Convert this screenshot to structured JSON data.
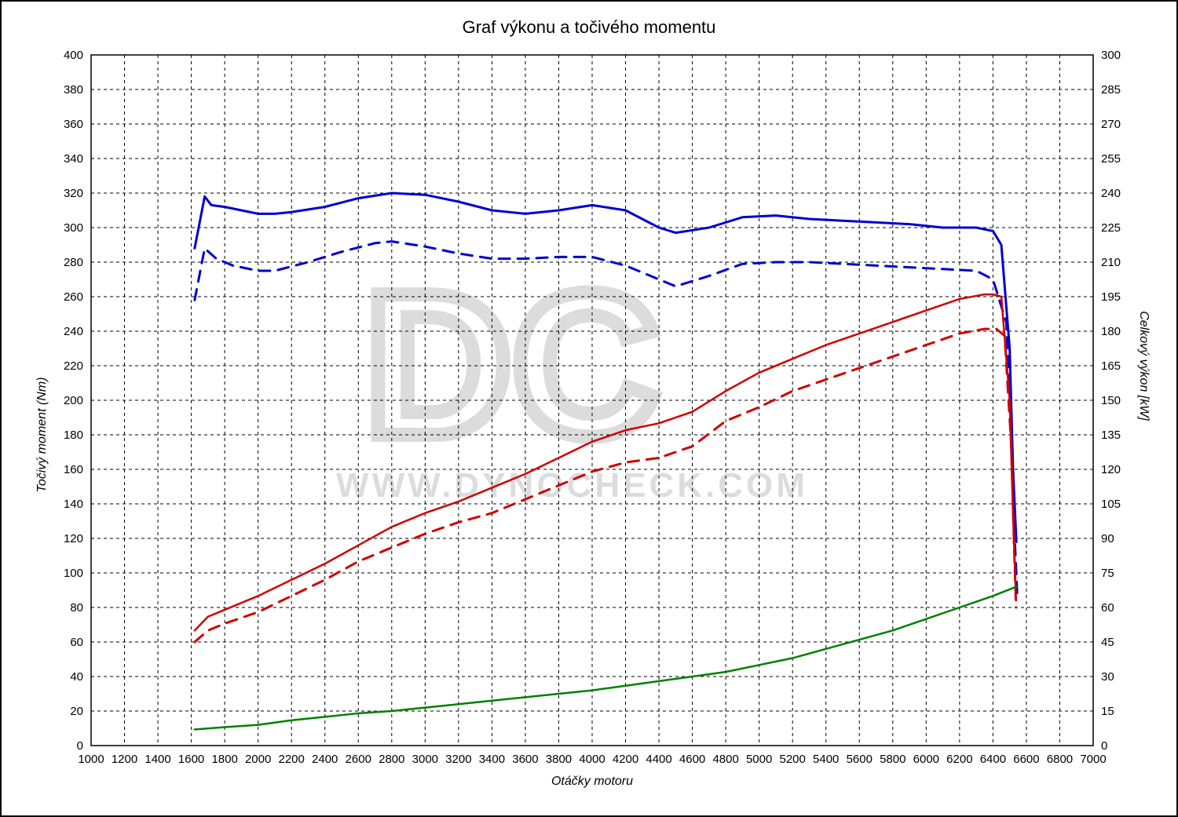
{
  "title": "Graf výkonu a točivého momentu",
  "x_axis": {
    "label": "Otáčky motoru",
    "min": 1000,
    "max": 7000,
    "tick_step": 200,
    "label_fontsize": 16,
    "tick_fontsize": 15
  },
  "y_left": {
    "label": "Točivý moment (Nm)",
    "min": 0,
    "max": 400,
    "tick_step": 20,
    "label_fontsize": 16,
    "tick_fontsize": 15
  },
  "y_right": {
    "label": "Celkový výkon [kW]",
    "min": 0,
    "max": 300,
    "tick_step": 15,
    "label_fontsize": 16,
    "tick_fontsize": 15
  },
  "grid": {
    "color": "#000000",
    "dash": "4,4",
    "width": 1
  },
  "plot_border_color": "#000000",
  "background_color": "#ffffff",
  "watermark": {
    "logo_text": "DC",
    "logo_fontsize": 260,
    "url_text": "WWW.DYNOCHECK.COM",
    "url_fontsize": 44,
    "color": "#dcdcdc"
  },
  "series": {
    "torque_tuned": {
      "axis": "left",
      "color": "#0000d0",
      "width": 3,
      "dash": "none",
      "points": [
        [
          1620,
          288
        ],
        [
          1680,
          318
        ],
        [
          1720,
          313
        ],
        [
          1800,
          312
        ],
        [
          1900,
          310
        ],
        [
          2000,
          308
        ],
        [
          2100,
          308
        ],
        [
          2200,
          309
        ],
        [
          2400,
          312
        ],
        [
          2600,
          317
        ],
        [
          2800,
          320
        ],
        [
          3000,
          319
        ],
        [
          3200,
          315
        ],
        [
          3400,
          310
        ],
        [
          3600,
          308
        ],
        [
          3800,
          310
        ],
        [
          4000,
          313
        ],
        [
          4200,
          310
        ],
        [
          4400,
          300
        ],
        [
          4500,
          297
        ],
        [
          4700,
          300
        ],
        [
          4900,
          306
        ],
        [
          5100,
          307
        ],
        [
          5300,
          305
        ],
        [
          5500,
          304
        ],
        [
          5700,
          303
        ],
        [
          5900,
          302
        ],
        [
          6100,
          300
        ],
        [
          6300,
          300
        ],
        [
          6400,
          298
        ],
        [
          6450,
          290
        ],
        [
          6500,
          230
        ],
        [
          6520,
          160
        ],
        [
          6540,
          118
        ]
      ]
    },
    "torque_stock": {
      "axis": "left",
      "color": "#0000d0",
      "width": 3,
      "dash": "14,10",
      "points": [
        [
          1620,
          258
        ],
        [
          1680,
          288
        ],
        [
          1750,
          282
        ],
        [
          1850,
          278
        ],
        [
          2000,
          275
        ],
        [
          2100,
          275
        ],
        [
          2300,
          280
        ],
        [
          2500,
          286
        ],
        [
          2700,
          291
        ],
        [
          2800,
          292
        ],
        [
          3000,
          289
        ],
        [
          3200,
          285
        ],
        [
          3400,
          282
        ],
        [
          3600,
          282
        ],
        [
          3800,
          283
        ],
        [
          4000,
          283
        ],
        [
          4200,
          278
        ],
        [
          4400,
          270
        ],
        [
          4500,
          266
        ],
        [
          4700,
          272
        ],
        [
          4900,
          279
        ],
        [
          5100,
          280
        ],
        [
          5300,
          280
        ],
        [
          5500,
          279
        ],
        [
          5700,
          278
        ],
        [
          5900,
          277
        ],
        [
          6100,
          276
        ],
        [
          6300,
          275
        ],
        [
          6400,
          270
        ],
        [
          6480,
          245
        ],
        [
          6510,
          180
        ],
        [
          6530,
          120
        ],
        [
          6545,
          88
        ]
      ]
    },
    "power_tuned": {
      "axis": "right",
      "color": "#d00000",
      "width": 2.5,
      "dash": "none",
      "points": [
        [
          1620,
          50
        ],
        [
          1700,
          56
        ],
        [
          1800,
          59
        ],
        [
          2000,
          65
        ],
        [
          2200,
          72
        ],
        [
          2400,
          79
        ],
        [
          2600,
          87
        ],
        [
          2800,
          95
        ],
        [
          3000,
          101
        ],
        [
          3200,
          106
        ],
        [
          3400,
          112
        ],
        [
          3600,
          118
        ],
        [
          3800,
          125
        ],
        [
          4000,
          132
        ],
        [
          4200,
          137
        ],
        [
          4400,
          140
        ],
        [
          4600,
          145
        ],
        [
          4800,
          154
        ],
        [
          5000,
          162
        ],
        [
          5200,
          168
        ],
        [
          5400,
          174
        ],
        [
          5600,
          179
        ],
        [
          5800,
          184
        ],
        [
          6000,
          189
        ],
        [
          6200,
          194
        ],
        [
          6350,
          196
        ],
        [
          6400,
          196
        ],
        [
          6450,
          195
        ],
        [
          6500,
          150
        ],
        [
          6520,
          100
        ],
        [
          6538,
          63
        ]
      ]
    },
    "power_stock": {
      "axis": "right",
      "color": "#d00000",
      "width": 3,
      "dash": "14,10",
      "points": [
        [
          1620,
          45
        ],
        [
          1700,
          50
        ],
        [
          1800,
          53
        ],
        [
          2000,
          58
        ],
        [
          2200,
          65
        ],
        [
          2400,
          72
        ],
        [
          2600,
          80
        ],
        [
          2800,
          86
        ],
        [
          3000,
          92
        ],
        [
          3200,
          97
        ],
        [
          3400,
          101
        ],
        [
          3600,
          107
        ],
        [
          3800,
          113
        ],
        [
          4000,
          119
        ],
        [
          4200,
          123
        ],
        [
          4400,
          125
        ],
        [
          4600,
          130
        ],
        [
          4800,
          141
        ],
        [
          5000,
          147
        ],
        [
          5200,
          154
        ],
        [
          5400,
          159
        ],
        [
          5600,
          164
        ],
        [
          5800,
          169
        ],
        [
          6000,
          174
        ],
        [
          6200,
          179
        ],
        [
          6350,
          181
        ],
        [
          6420,
          181
        ],
        [
          6470,
          178
        ],
        [
          6510,
          130
        ],
        [
          6525,
          90
        ],
        [
          6538,
          60
        ]
      ]
    },
    "loss": {
      "axis": "right",
      "color": "#008000",
      "width": 2.5,
      "dash": "none",
      "points": [
        [
          1620,
          7
        ],
        [
          1800,
          8
        ],
        [
          2000,
          9
        ],
        [
          2200,
          11
        ],
        [
          2400,
          12.5
        ],
        [
          2600,
          14
        ],
        [
          2800,
          15
        ],
        [
          3000,
          16.5
        ],
        [
          3200,
          18
        ],
        [
          3400,
          19.5
        ],
        [
          3600,
          21
        ],
        [
          3800,
          22.5
        ],
        [
          4000,
          24
        ],
        [
          4200,
          26
        ],
        [
          4400,
          28
        ],
        [
          4600,
          30
        ],
        [
          4800,
          32
        ],
        [
          5000,
          35
        ],
        [
          5200,
          38
        ],
        [
          5400,
          42
        ],
        [
          5600,
          46
        ],
        [
          5800,
          50
        ],
        [
          6000,
          55
        ],
        [
          6200,
          60
        ],
        [
          6400,
          65
        ],
        [
          6540,
          69
        ]
      ]
    }
  }
}
